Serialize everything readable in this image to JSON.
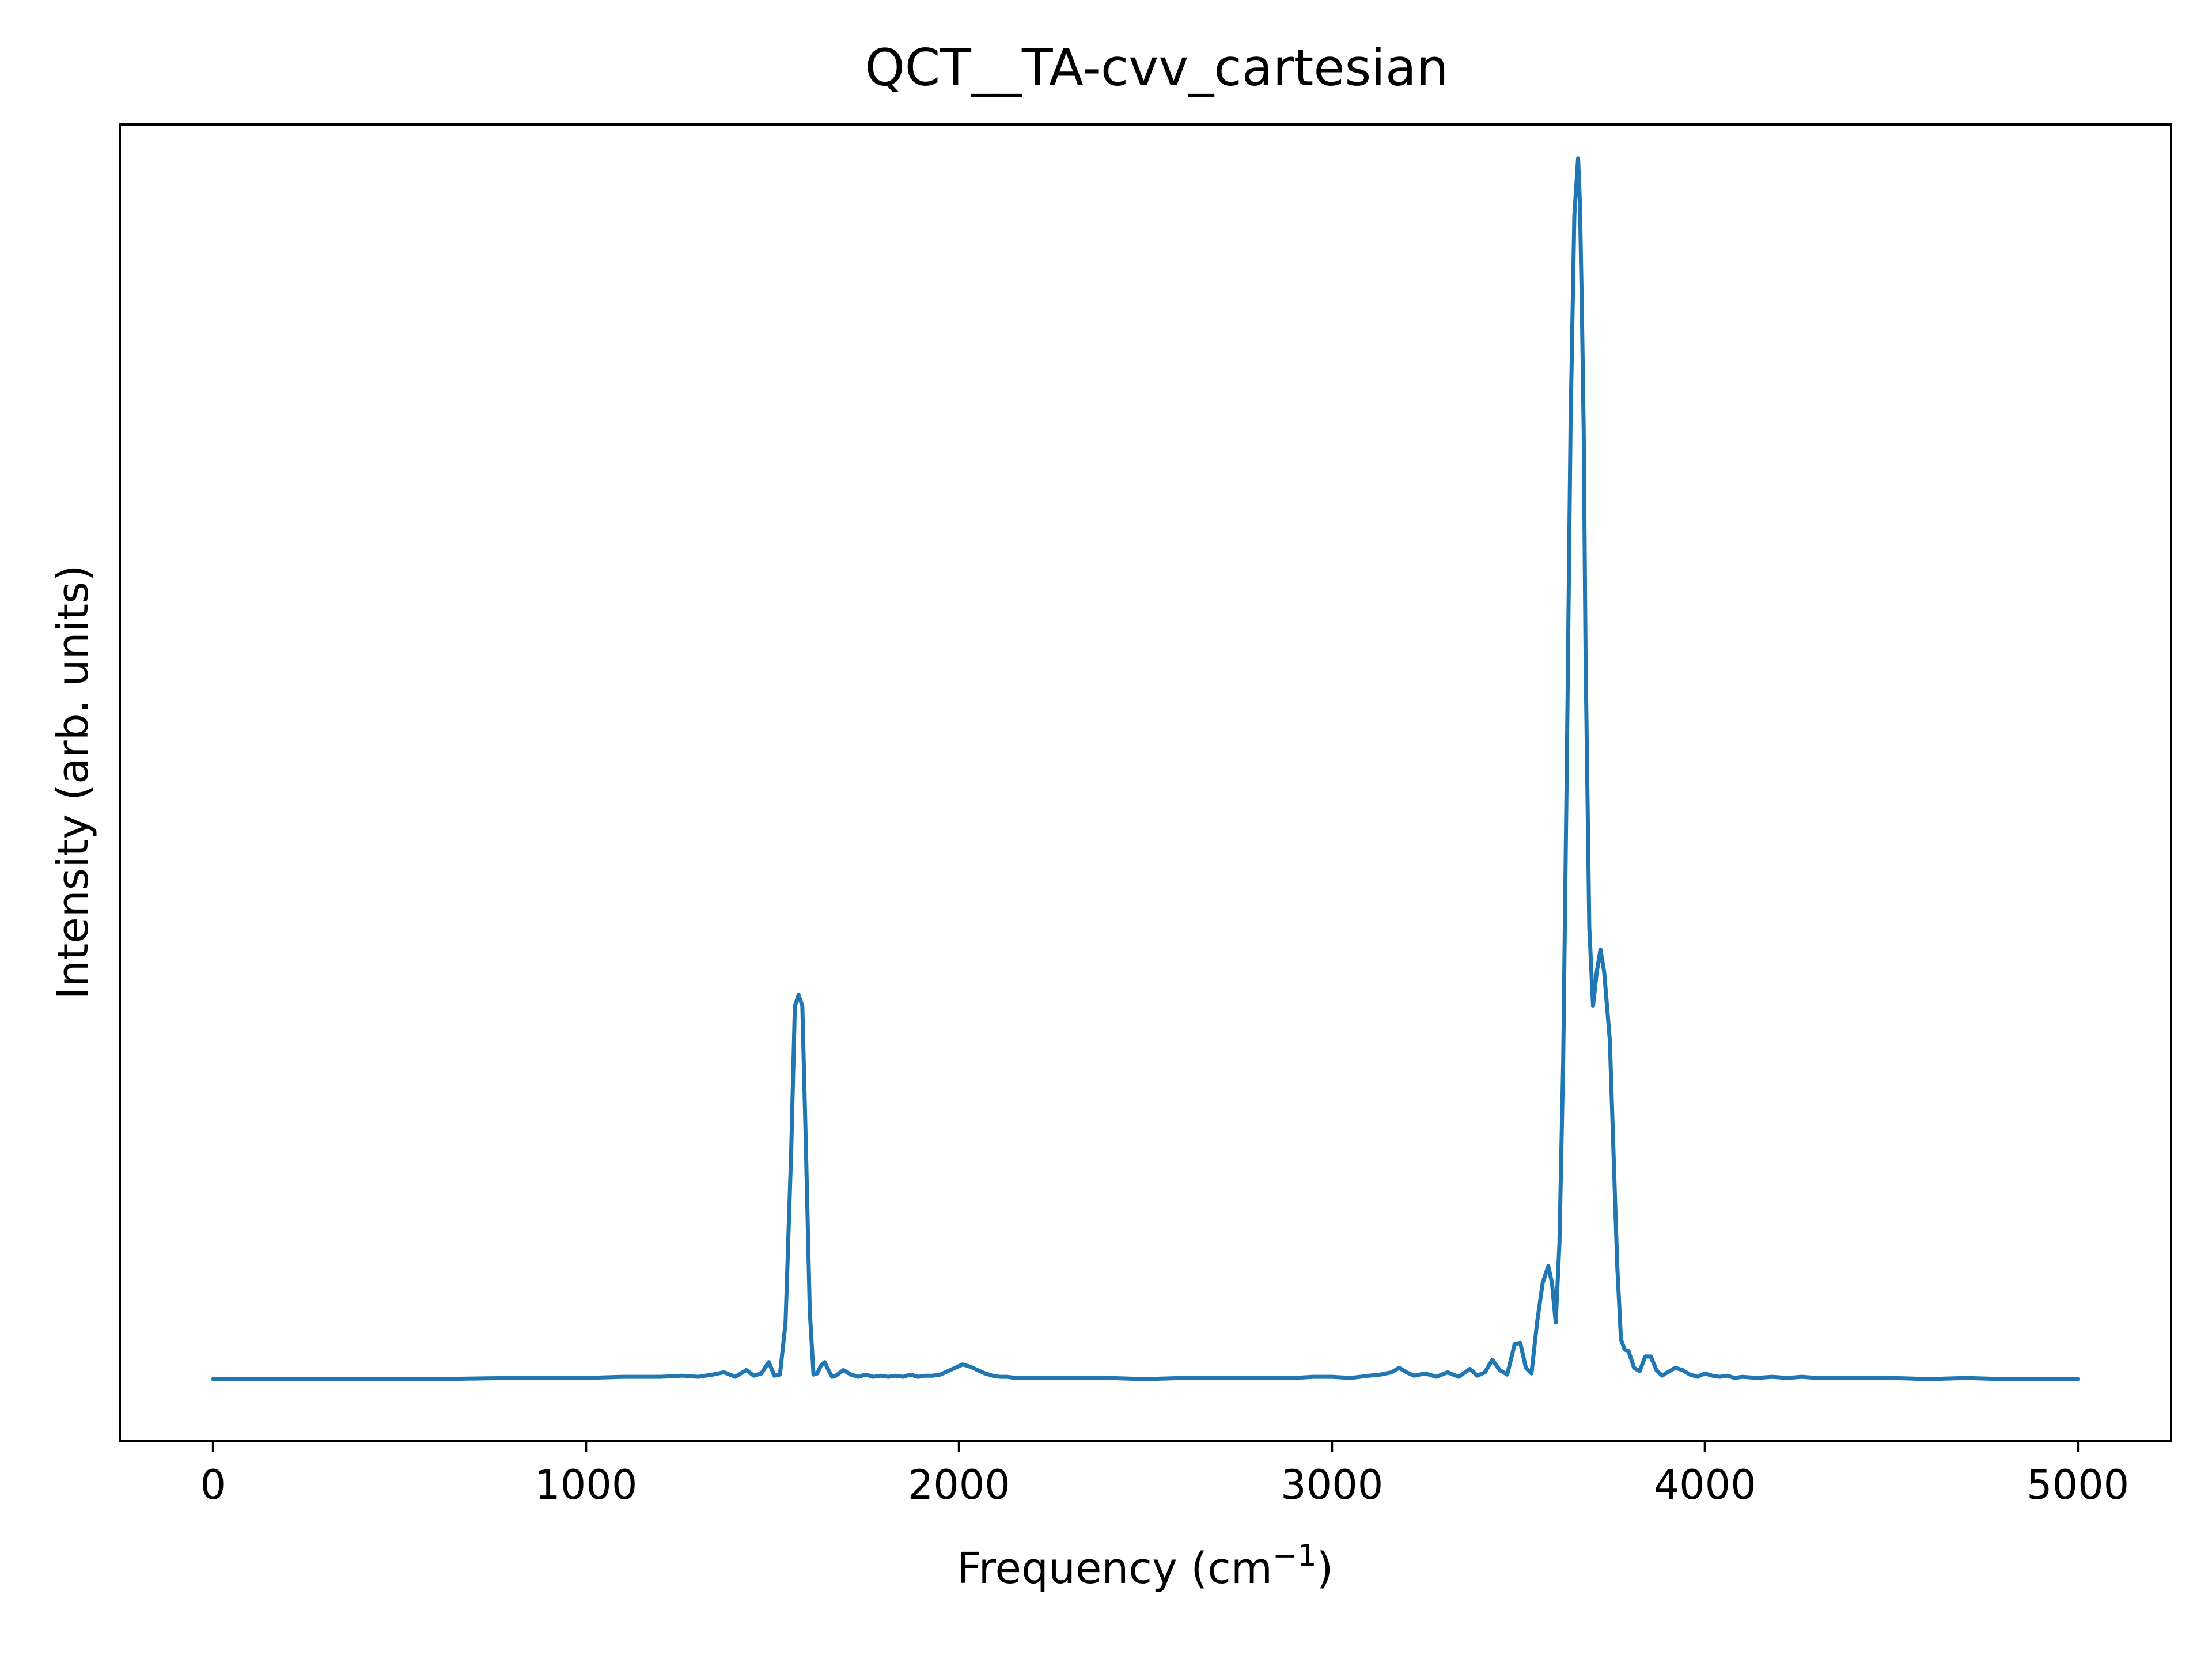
{
  "chart_data": {
    "type": "line",
    "title": "QCT__TA-cvv_cartesian",
    "xlabel": "Frequency (cm",
    "xlabel_sup": "−1",
    "xlabel_close": ")",
    "ylabel": "Intensity (arb. units)",
    "xlim": [
      -250,
      5250
    ],
    "ylim": [
      -0.055,
      1.11
    ],
    "y_ticks_shown": false,
    "grid": false,
    "xticks": [
      0,
      1000,
      2000,
      3000,
      4000,
      5000
    ],
    "xtick_labels": [
      "0",
      "1000",
      "2000",
      "3000",
      "4000",
      "5000"
    ],
    "line_color": "#1f77b4",
    "series": [
      {
        "x": [
          0,
          200,
          400,
          600,
          800,
          900,
          1000,
          1100,
          1200,
          1260,
          1300,
          1340,
          1370,
          1400,
          1430,
          1450,
          1470,
          1490,
          1505,
          1520,
          1535,
          1550,
          1560,
          1570,
          1580,
          1590,
          1600,
          1610,
          1620,
          1630,
          1640,
          1650,
          1660,
          1670,
          1690,
          1710,
          1730,
          1750,
          1770,
          1790,
          1810,
          1830,
          1850,
          1870,
          1890,
          1910,
          1930,
          1950,
          1970,
          1990,
          2010,
          2030,
          2050,
          2070,
          2090,
          2110,
          2130,
          2150,
          2170,
          2200,
          2250,
          2300,
          2400,
          2500,
          2600,
          2700,
          2800,
          2900,
          2950,
          3000,
          3050,
          3100,
          3130,
          3160,
          3180,
          3200,
          3220,
          3250,
          3280,
          3310,
          3340,
          3370,
          3390,
          3410,
          3430,
          3450,
          3470,
          3490,
          3505,
          3520,
          3535,
          3550,
          3565,
          3580,
          3590,
          3600,
          3610,
          3620,
          3630,
          3640,
          3650,
          3660,
          3665,
          3670,
          3675,
          3680,
          3690,
          3700,
          3710,
          3720,
          3730,
          3745,
          3755,
          3765,
          3775,
          3785,
          3795,
          3810,
          3825,
          3840,
          3855,
          3870,
          3885,
          3900,
          3920,
          3940,
          3960,
          3980,
          4000,
          4020,
          4040,
          4060,
          4080,
          4100,
          4140,
          4180,
          4220,
          4260,
          4300,
          4350,
          4400,
          4500,
          4600,
          4700,
          4800,
          4900,
          5000
        ],
        "y": [
          0.0,
          0.0,
          0.0,
          0.0,
          0.001,
          0.001,
          0.001,
          0.002,
          0.002,
          0.003,
          0.002,
          0.004,
          0.006,
          0.002,
          0.008,
          0.003,
          0.005,
          0.015,
          0.003,
          0.004,
          0.05,
          0.2,
          0.33,
          0.34,
          0.33,
          0.2,
          0.06,
          0.004,
          0.005,
          0.012,
          0.015,
          0.008,
          0.002,
          0.003,
          0.008,
          0.004,
          0.002,
          0.004,
          0.002,
          0.003,
          0.002,
          0.003,
          0.002,
          0.004,
          0.002,
          0.003,
          0.003,
          0.004,
          0.007,
          0.01,
          0.013,
          0.011,
          0.008,
          0.005,
          0.003,
          0.002,
          0.002,
          0.001,
          0.001,
          0.001,
          0.001,
          0.001,
          0.001,
          0.0,
          0.001,
          0.001,
          0.001,
          0.001,
          0.002,
          0.002,
          0.001,
          0.003,
          0.004,
          0.006,
          0.01,
          0.006,
          0.003,
          0.005,
          0.002,
          0.006,
          0.002,
          0.009,
          0.003,
          0.006,
          0.017,
          0.008,
          0.004,
          0.031,
          0.032,
          0.01,
          0.005,
          0.05,
          0.085,
          0.1,
          0.085,
          0.05,
          0.12,
          0.28,
          0.55,
          0.85,
          1.03,
          1.08,
          1.04,
          0.95,
          0.84,
          0.64,
          0.4,
          0.33,
          0.36,
          0.38,
          0.36,
          0.3,
          0.2,
          0.1,
          0.035,
          0.026,
          0.025,
          0.01,
          0.007,
          0.02,
          0.02,
          0.008,
          0.003,
          0.006,
          0.01,
          0.008,
          0.004,
          0.002,
          0.005,
          0.003,
          0.002,
          0.003,
          0.001,
          0.002,
          0.001,
          0.002,
          0.001,
          0.002,
          0.001,
          0.001,
          0.001,
          0.001,
          0.0,
          0.001,
          0.0,
          0.0,
          0.0
        ]
      }
    ]
  }
}
